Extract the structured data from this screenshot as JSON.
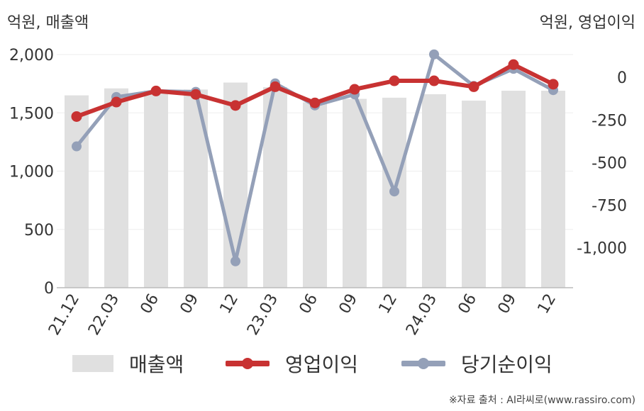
{
  "units": {
    "left": "억원, 매출액",
    "right": "억원, 영업이익"
  },
  "legend": {
    "revenue": "매출액",
    "operating": "영업이익",
    "net": "당기순이익"
  },
  "source": "※자료 출처 : AI라씨로(www.rassiro.com)",
  "colors": {
    "revenue": "#e0e0e0",
    "operating": "#c83232",
    "net": "#94a0b8",
    "axis": "#bbbbbb",
    "grid": "#eeeeee"
  },
  "chart_data": {
    "type": "bar",
    "categories": [
      "21.12",
      "22.03",
      "06",
      "09",
      "12",
      "23.03",
      "06",
      "09",
      "12",
      "24.03",
      "06",
      "09",
      "12"
    ],
    "left_axis": {
      "ticks": [
        0,
        500,
        1000,
        1500,
        2000
      ],
      "tick_labels": [
        "0",
        "500",
        "1,000",
        "1,500",
        "2,000"
      ],
      "ylim": [
        0,
        2000
      ]
    },
    "right_axis": {
      "ticks": [
        0,
        -250,
        -500,
        -750,
        -1000
      ],
      "tick_labels": [
        "0",
        "-250",
        "-500",
        "-750",
        "-1,000"
      ],
      "ylim": [
        -1235,
        134
      ]
    },
    "series": [
      {
        "name": "매출액",
        "type": "bar",
        "axis": "left",
        "values": [
          1650,
          1710,
          1690,
          1700,
          1760,
          1720,
          1590,
          1620,
          1630,
          1660,
          1605,
          1690,
          1690
        ]
      },
      {
        "name": "영업이익",
        "type": "line",
        "axis": "right",
        "values": [
          -230,
          -145,
          -80,
          -100,
          -165,
          -55,
          -150,
          -70,
          -20,
          -20,
          -55,
          75,
          -40
        ]
      },
      {
        "name": "당기순이익",
        "type": "line",
        "axis": "right",
        "values": [
          -405,
          -115,
          -80,
          -85,
          -1080,
          -35,
          -165,
          -100,
          -670,
          135,
          -50,
          50,
          -75
        ]
      }
    ]
  }
}
